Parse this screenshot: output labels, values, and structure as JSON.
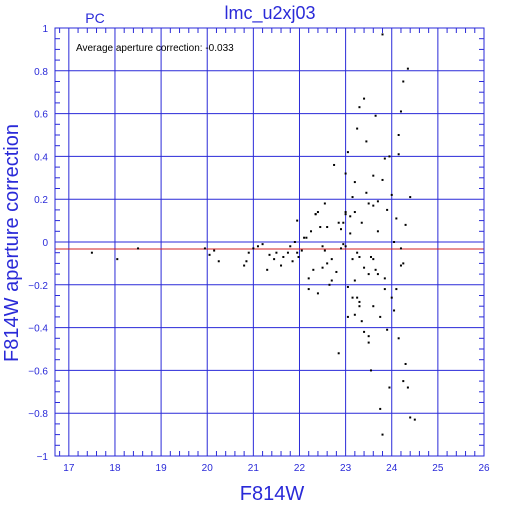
{
  "chart_data": {
    "type": "scatter",
    "title": "lmc_u2xj03",
    "corner_label": "PC",
    "annotation": "Average aperture correction: -0.033",
    "average_correction": -0.033,
    "xlabel": "F814W",
    "ylabel": "F814W aperture correction",
    "xlim": [
      16.7,
      26
    ],
    "ylim": [
      -1,
      1
    ],
    "xticks": [
      17,
      18,
      19,
      20,
      21,
      22,
      23,
      24,
      25,
      26
    ],
    "yticks": [
      -1,
      -0.8,
      -0.6,
      -0.4,
      -0.2,
      0,
      0.2,
      0.4,
      0.6,
      0.8,
      1
    ],
    "ytick_labels": [
      "−1",
      "−0.8",
      "−0.6",
      "−0.4",
      "−0.2",
      "0",
      "0.2",
      "0.4",
      "0.6",
      "0.8",
      "1"
    ],
    "grid": true,
    "colors": {
      "axis": "#2a2ad8",
      "grid": "#2a2ad8",
      "avg_line": "#d02020",
      "points": "#000000"
    },
    "series": [
      {
        "x": [
          17.5,
          18.05,
          18.5,
          19.95,
          20.05,
          20.15,
          20.25,
          20.8,
          20.85,
          20.9,
          21.0,
          21.1,
          21.2,
          21.3,
          21.35,
          21.45,
          21.5,
          21.6,
          21.65,
          21.75,
          21.8,
          21.85,
          21.9,
          21.95,
          21.98,
          22.05,
          22.15,
          22.2,
          22.2,
          22.25,
          22.3,
          22.35,
          22.4,
          22.45,
          22.5,
          22.55,
          22.55,
          22.6,
          22.65,
          22.7,
          22.75,
          22.8,
          22.85,
          22.9,
          22.95,
          23.0,
          23.0,
          23.05,
          23.05,
          23.1,
          23.15,
          23.15,
          23.2,
          23.2,
          23.25,
          23.25,
          23.3,
          23.3,
          23.35,
          23.4,
          23.4,
          23.45,
          23.5,
          23.5,
          23.55,
          23.6,
          23.6,
          23.65,
          23.7,
          23.75,
          23.8,
          23.85,
          23.9,
          23.95,
          23.95,
          24.0,
          24.05,
          24.1,
          24.15,
          24.15,
          24.2,
          24.2,
          24.25,
          24.3,
          24.3,
          24.35,
          24.4,
          24.4,
          24.5,
          22.85,
          23.0,
          23.1,
          23.25,
          23.6,
          23.7,
          23.8,
          23.3,
          23.45,
          23.5,
          23.85,
          24.05,
          23.05,
          23.15,
          23.4,
          23.6,
          23.75,
          22.7,
          22.5,
          23.35,
          23.55,
          23.9,
          24.2,
          24.25,
          23.2,
          23.65,
          22.9,
          24.0,
          24.1,
          22.95,
          23.3,
          23.7,
          23.85,
          22.35,
          22.6,
          21.95,
          22.1,
          22.4,
          23.0,
          23.2,
          23.5,
          23.8,
          24.15,
          24.25,
          24.35
        ],
        "y": [
          -0.05,
          -0.08,
          -0.03,
          -0.03,
          -0.06,
          -0.04,
          -0.09,
          -0.11,
          -0.09,
          -0.05,
          -0.03,
          -0.02,
          -0.01,
          -0.13,
          -0.06,
          -0.08,
          -0.05,
          -0.11,
          -0.07,
          -0.05,
          -0.02,
          -0.09,
          0.0,
          -0.05,
          -0.07,
          -0.04,
          0.02,
          -0.17,
          -0.22,
          0.05,
          -0.13,
          0.13,
          -0.24,
          0.07,
          -0.12,
          -0.04,
          0.18,
          -0.1,
          -0.2,
          -0.08,
          0.36,
          -0.14,
          -0.52,
          -0.03,
          0.09,
          0.32,
          -0.02,
          0.42,
          -0.35,
          0.12,
          0.21,
          -0.08,
          0.28,
          -0.18,
          0.53,
          -0.05,
          0.63,
          -0.3,
          0.09,
          0.67,
          -0.42,
          0.47,
          -0.44,
          0.18,
          -0.6,
          0.31,
          -0.08,
          0.59,
          0.05,
          -0.78,
          -0.9,
          0.39,
          0.15,
          -0.68,
          0.4,
          -0.26,
          -0.32,
          -0.22,
          0.5,
          -0.45,
          0.61,
          -0.03,
          0.75,
          -0.57,
          0.08,
          0.81,
          -0.82,
          0.21,
          -0.83,
          0.09,
          0.14,
          0.04,
          -0.26,
          0.17,
          -0.15,
          0.29,
          -0.07,
          0.23,
          -0.47,
          -0.17,
          0.0,
          -0.21,
          -0.26,
          -0.12,
          -0.3,
          -0.35,
          -0.18,
          -0.02,
          -0.37,
          -0.07,
          -0.41,
          -0.11,
          -0.1,
          0.14,
          -0.13,
          0.06,
          0.22,
          0.11,
          -0.01,
          -0.28,
          0.19,
          -0.22,
          0.13,
          0.07,
          0.1,
          0.02,
          0.14,
          0.13,
          -0.34,
          -0.15,
          0.97,
          0.41,
          -0.65,
          -0.68
        ]
      }
    ]
  }
}
